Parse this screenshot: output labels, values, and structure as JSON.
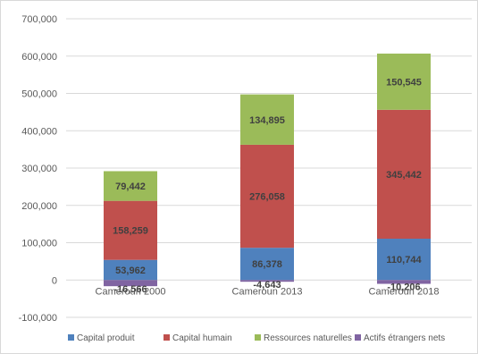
{
  "chart_data": {
    "type": "bar",
    "stacked": true,
    "categories": [
      "Cameroun 2000",
      "Cameroun 2013",
      "Cameroun 2018"
    ],
    "series": [
      {
        "name": "Capital produit",
        "color": "#4f81bd",
        "values": [
          53962,
          86378,
          110744
        ],
        "labels": [
          "53,962",
          "86,378",
          "110,744"
        ]
      },
      {
        "name": "Capital humain",
        "color": "#c0504d",
        "values": [
          158259,
          276058,
          345442
        ],
        "labels": [
          "158,259",
          "276,058",
          "345,442"
        ]
      },
      {
        "name": "Ressources naturelles",
        "color": "#9bbb59",
        "values": [
          79442,
          134895,
          150545
        ],
        "labels": [
          "79,442",
          "134,895",
          "150,545"
        ]
      },
      {
        "name": "Actifs étrangers nets",
        "color": "#8064a2",
        "values": [
          -16566,
          -4643,
          -10206
        ],
        "labels": [
          "-16,566",
          "-4,643",
          "-10,206"
        ]
      }
    ],
    "ylim": [
      -100000,
      700000
    ],
    "yticks": [
      -100000,
      0,
      100000,
      200000,
      300000,
      400000,
      500000,
      600000,
      700000
    ],
    "ytick_labels": [
      "-100,000",
      "0",
      "100,000",
      "200,000",
      "300,000",
      "400,000",
      "500,000",
      "600,000",
      "700,000"
    ],
    "grid": true,
    "legend_position": "bottom",
    "title": "",
    "xlabel": "",
    "ylabel": ""
  }
}
